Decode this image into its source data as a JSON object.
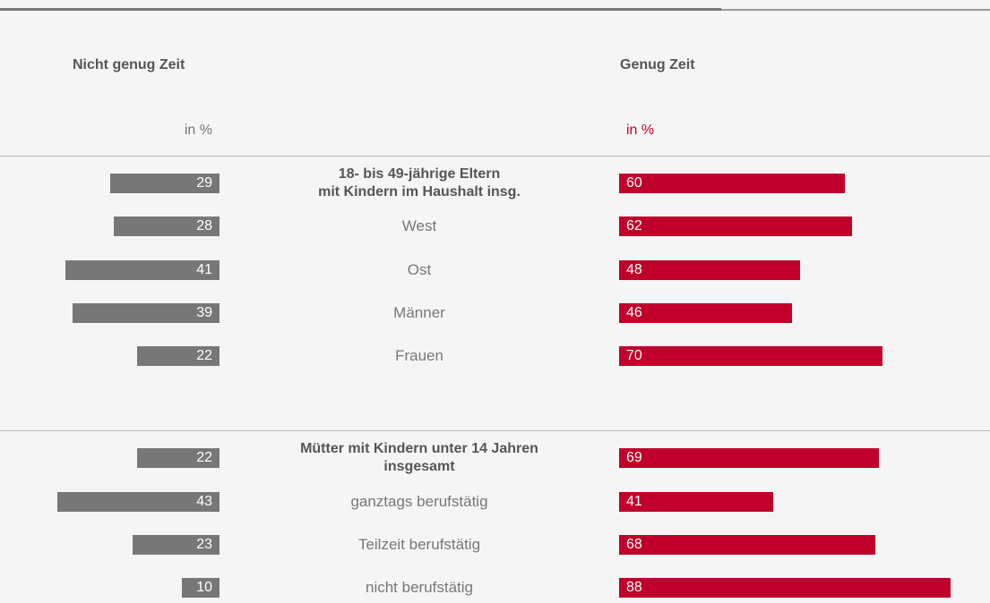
{
  "chart_data": {
    "type": "butterfly",
    "categories": [
      [
        "18- bis 49-jährige Eltern\nmit Kindern im Haushalt insg.",
        "West",
        "Ost",
        "Männer",
        "Frauen"
      ],
      [
        "Mütter mit Kindern unter 14 Jahren\ninsgesamt",
        "ganztags berufstätig",
        "Teilzeit berufstätig",
        "nicht berufstätig"
      ]
    ],
    "series": [
      {
        "name": "Nicht genug Zeit",
        "unit": "in %",
        "color": "#777777",
        "values": [
          [
            29,
            28,
            41,
            39,
            22
          ],
          [
            22,
            43,
            23,
            10
          ]
        ]
      },
      {
        "name": "Genug Zeit",
        "unit": "in %",
        "color": "#c0002b",
        "values": [
          [
            60,
            62,
            48,
            46,
            70
          ],
          [
            69,
            41,
            68,
            88
          ]
        ]
      }
    ]
  }
}
